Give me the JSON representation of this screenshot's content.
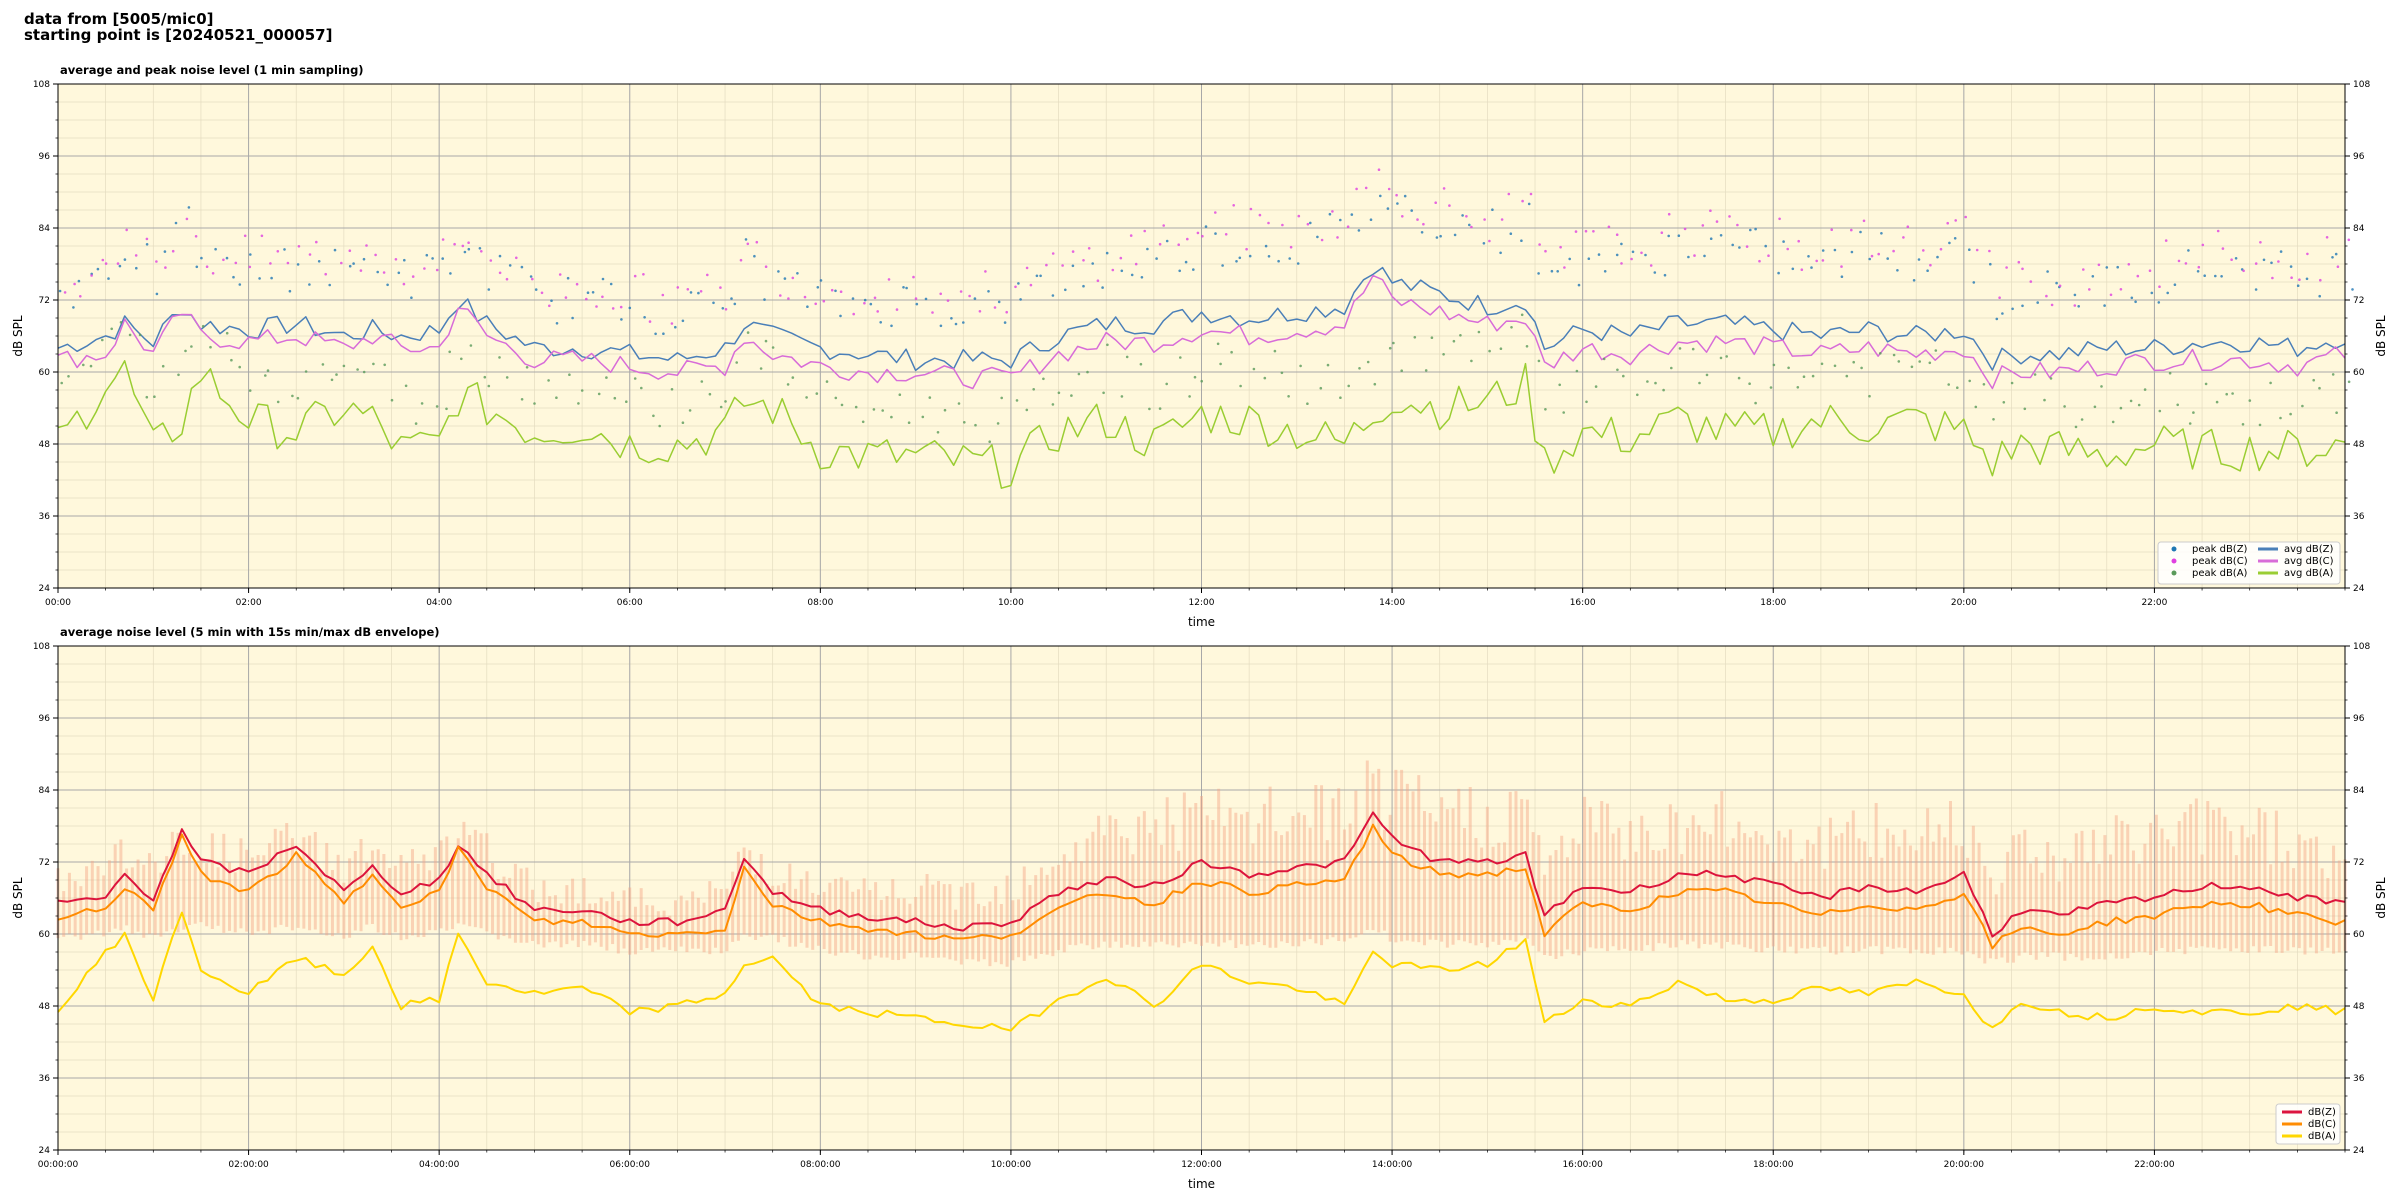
{
  "header": {
    "line1": "data from [5005/mic0]",
    "line2": "starting point is [20240521_000057]"
  },
  "colors": {
    "background": "#fff8dc",
    "peak_z": "#1f77b4",
    "peak_c": "#e040e0",
    "peak_a": "#5a9a5a",
    "avg_z": "#4a7fb8",
    "avg_c": "#d86cd8",
    "avg_a": "#9acd32",
    "db_z": "#dc143c",
    "db_c": "#ff8c00",
    "db_a": "#ffd700",
    "envelope": "#f4a582"
  },
  "chart_data": [
    {
      "type": "line",
      "title": "average and peak noise level (1 min sampling)",
      "xlabel": "time",
      "ylabel": "dB SPL",
      "ylim": [
        24,
        108
      ],
      "xlim_hours": [
        0,
        24
      ],
      "grid": true,
      "legend_position": "bottom-right",
      "yticks": [
        "24",
        "36",
        "48",
        "60",
        "72",
        "84",
        "96",
        "108"
      ],
      "xticks": [
        "00:00",
        "02:00",
        "04:00",
        "06:00",
        "08:00",
        "10:00",
        "12:00",
        "14:00",
        "16:00",
        "18:00",
        "20:00",
        "22:00"
      ],
      "x_hours": [
        0,
        0.5,
        0.7,
        1,
        1.3,
        1.5,
        2,
        2.5,
        3,
        3.3,
        3.6,
        4,
        4.2,
        4.5,
        5,
        5.5,
        6,
        6.5,
        7,
        7.2,
        7.5,
        8,
        8.5,
        9,
        9.5,
        10,
        10.5,
        11,
        11.5,
        12,
        12.5,
        13,
        13.5,
        13.8,
        14,
        14.5,
        15,
        15.4,
        15.6,
        16,
        16.5,
        17,
        17.5,
        18,
        18.5,
        19,
        19.5,
        20,
        20.3,
        20.6,
        21,
        21.5,
        22,
        22.5,
        23,
        23.5,
        24
      ],
      "series": [
        {
          "name": "avg dB(Z)",
          "key": "avg_z",
          "kind": "line",
          "values": [
            64,
            66,
            68,
            65,
            71,
            68,
            67,
            68,
            66,
            67,
            66,
            67,
            72,
            68,
            64,
            64,
            63,
            62,
            64,
            68,
            66,
            64,
            63,
            62,
            62,
            62,
            66,
            68,
            68,
            70,
            69,
            70,
            71,
            78,
            75,
            73,
            71,
            72,
            64,
            67,
            66,
            68,
            68,
            67,
            66,
            67,
            66,
            67,
            62,
            63,
            63,
            64,
            64,
            65,
            65,
            64,
            66
          ]
        },
        {
          "name": "avg dB(C)",
          "key": "avg_c",
          "kind": "line",
          "values": [
            62,
            63,
            68,
            63,
            70,
            66,
            65,
            66,
            64,
            66,
            64,
            64,
            71,
            66,
            62,
            62,
            61,
            60,
            61,
            66,
            63,
            61,
            60,
            60,
            59,
            59,
            63,
            65,
            65,
            67,
            66,
            67,
            68,
            76,
            72,
            70,
            68,
            69,
            61,
            64,
            63,
            65,
            65,
            64,
            63,
            64,
            63,
            64,
            59,
            60,
            60,
            61,
            62,
            62,
            62,
            61,
            63
          ]
        },
        {
          "name": "avg dB(A)",
          "key": "avg_a",
          "kind": "line",
          "values": [
            48,
            58,
            60,
            47,
            52,
            60,
            52,
            50,
            54,
            52,
            47,
            48,
            56,
            54,
            50,
            51,
            48,
            48,
            50,
            55,
            54,
            47,
            46,
            46,
            45,
            44,
            50,
            52,
            48,
            53,
            52,
            50,
            48,
            53,
            56,
            54,
            55,
            58,
            45,
            50,
            49,
            52,
            50,
            50,
            52,
            51,
            52,
            50,
            45,
            48,
            47,
            46,
            48,
            47,
            47,
            47,
            48
          ]
        },
        {
          "name": "peak dB(Z)",
          "key": "peak_z",
          "kind": "points",
          "values": [
            72,
            76,
            80,
            74,
            82,
            76,
            75,
            76,
            75,
            77,
            74,
            75,
            79,
            76,
            70,
            71,
            69,
            68,
            70,
            77,
            73,
            70,
            70,
            70,
            69,
            70,
            74,
            76,
            77,
            80,
            79,
            80,
            82,
            88,
            86,
            84,
            82,
            83,
            73,
            78,
            76,
            80,
            79,
            78,
            76,
            79,
            77,
            80,
            70,
            72,
            71,
            73,
            74,
            76,
            76,
            74,
            76
          ]
        },
        {
          "name": "peak dB(C)",
          "key": "peak_c",
          "kind": "points",
          "values": [
            73,
            78,
            82,
            75,
            84,
            78,
            77,
            78,
            77,
            79,
            76,
            77,
            81,
            78,
            72,
            73,
            71,
            70,
            72,
            79,
            75,
            72,
            72,
            72,
            71,
            72,
            76,
            78,
            80,
            83,
            82,
            83,
            85,
            90,
            88,
            86,
            84,
            85,
            75,
            80,
            78,
            82,
            81,
            80,
            78,
            81,
            79,
            83,
            72,
            74,
            73,
            75,
            76,
            78,
            79,
            76,
            78
          ]
        },
        {
          "name": "peak dB(A)",
          "key": "peak_a",
          "kind": "points",
          "values": [
            56,
            63,
            66,
            54,
            60,
            66,
            58,
            57,
            60,
            58,
            53,
            55,
            63,
            60,
            56,
            57,
            54,
            53,
            56,
            62,
            60,
            53,
            52,
            52,
            51,
            50,
            57,
            59,
            55,
            60,
            59,
            57,
            55,
            60,
            63,
            61,
            62,
            65,
            51,
            57,
            56,
            59,
            57,
            57,
            59,
            58,
            59,
            57,
            51,
            55,
            53,
            52,
            55,
            53,
            53,
            53,
            55
          ]
        }
      ]
    },
    {
      "type": "line",
      "title": "average noise level (5 min with 15s min/max dB envelope)",
      "xlabel": "time",
      "ylabel": "dB SPL",
      "ylim": [
        24,
        108
      ],
      "xlim_hours": [
        0,
        24
      ],
      "grid": true,
      "legend_position": "bottom-right",
      "yticks": [
        "24",
        "36",
        "48",
        "60",
        "72",
        "84",
        "96",
        "108"
      ],
      "xticks": [
        "00:00:00",
        "02:00:00",
        "04:00:00",
        "06:00:00",
        "08:00:00",
        "10:00:00",
        "12:00:00",
        "14:00:00",
        "16:00:00",
        "18:00:00",
        "20:00:00",
        "22:00:00"
      ],
      "x_hours": [
        0,
        0.5,
        0.7,
        1,
        1.3,
        1.5,
        2,
        2.5,
        3,
        3.3,
        3.6,
        4,
        4.2,
        4.5,
        5,
        5.5,
        6,
        6.5,
        7,
        7.2,
        7.5,
        8,
        8.5,
        9,
        9.5,
        10,
        10.5,
        11,
        11.5,
        12,
        12.5,
        13,
        13.5,
        13.8,
        14,
        14.5,
        15,
        15.4,
        15.6,
        16,
        16.5,
        17,
        17.5,
        18,
        18.5,
        19,
        19.5,
        20,
        20.3,
        20.6,
        21,
        21.5,
        22,
        22.5,
        23,
        23.5,
        24
      ],
      "series": [
        {
          "name": "dB(Z)",
          "key": "db_z",
          "kind": "line",
          "values": [
            65,
            66,
            70,
            66,
            77,
            72,
            70,
            75,
            67,
            71,
            67,
            69,
            75,
            70,
            64,
            64,
            62,
            62,
            64,
            73,
            67,
            64,
            63,
            62,
            61,
            62,
            67,
            69,
            68,
            72,
            70,
            71,
            72,
            80,
            76,
            72,
            72,
            73,
            63,
            68,
            67,
            70,
            70,
            68,
            66,
            68,
            67,
            70,
            60,
            64,
            63,
            65,
            66,
            68,
            68,
            66,
            65
          ]
        },
        {
          "name": "dB(C)",
          "key": "db_c",
          "kind": "line",
          "values": [
            63,
            64,
            68,
            64,
            76,
            70,
            67,
            73,
            65,
            70,
            65,
            67,
            74,
            68,
            62,
            62,
            60,
            60,
            61,
            71,
            65,
            62,
            61,
            60,
            59,
            60,
            64,
            67,
            65,
            69,
            67,
            68,
            69,
            78,
            73,
            70,
            70,
            71,
            60,
            65,
            64,
            67,
            67,
            65,
            63,
            65,
            64,
            67,
            58,
            61,
            60,
            62,
            63,
            65,
            65,
            63,
            62
          ]
        },
        {
          "name": "dB(A)",
          "key": "db_a",
          "kind": "line",
          "values": [
            47,
            57,
            60,
            49,
            64,
            54,
            50,
            56,
            53,
            58,
            48,
            49,
            60,
            52,
            50,
            51,
            47,
            48,
            50,
            55,
            56,
            48,
            47,
            46,
            45,
            44,
            49,
            53,
            48,
            55,
            52,
            51,
            48,
            57,
            55,
            54,
            55,
            59,
            45,
            49,
            48,
            52,
            49,
            49,
            51,
            50,
            52,
            50,
            44,
            49,
            47,
            46,
            48,
            47,
            47,
            48,
            47
          ]
        },
        {
          "name": "envelope max",
          "key": "envelope",
          "kind": "band_upper",
          "values": [
            72,
            74,
            78,
            73,
            80,
            78,
            76,
            80,
            75,
            78,
            74,
            76,
            80,
            77,
            70,
            70,
            68,
            67,
            70,
            78,
            74,
            70,
            70,
            70,
            70,
            72,
            78,
            82,
            84,
            85,
            84,
            86,
            86,
            90,
            88,
            86,
            86,
            86,
            76,
            84,
            82,
            84,
            84,
            82,
            80,
            82,
            82,
            86,
            74,
            80,
            78,
            80,
            82,
            84,
            84,
            80,
            76
          ]
        },
        {
          "name": "envelope min",
          "key": "envelope",
          "kind": "band_lower",
          "values": [
            60,
            61,
            62,
            60,
            62,
            62,
            61,
            62,
            60,
            62,
            60,
            61,
            62,
            61,
            59,
            59,
            58,
            58,
            58,
            60,
            60,
            58,
            57,
            57,
            56,
            56,
            58,
            59,
            59,
            59,
            59,
            59,
            60,
            62,
            60,
            59,
            59,
            60,
            57,
            58,
            58,
            59,
            59,
            58,
            58,
            58,
            58,
            58,
            56,
            57,
            57,
            57,
            58,
            58,
            58,
            58,
            58
          ]
        }
      ]
    }
  ],
  "legend_top": [
    {
      "label": "peak dB(Z)",
      "key": "peak_z",
      "kind": "point"
    },
    {
      "label": "peak dB(C)",
      "key": "peak_c",
      "kind": "point"
    },
    {
      "label": "peak dB(A)",
      "key": "peak_a",
      "kind": "point"
    },
    {
      "label": "avg dB(Z)",
      "key": "avg_z",
      "kind": "line"
    },
    {
      "label": "avg dB(C)",
      "key": "avg_c",
      "kind": "line"
    },
    {
      "label": "avg dB(A)",
      "key": "avg_a",
      "kind": "line"
    }
  ],
  "legend_bottom": [
    {
      "label": "dB(Z)",
      "key": "db_z",
      "kind": "line"
    },
    {
      "label": "dB(C)",
      "key": "db_c",
      "kind": "line"
    },
    {
      "label": "dB(A)",
      "key": "db_a",
      "kind": "line"
    }
  ]
}
